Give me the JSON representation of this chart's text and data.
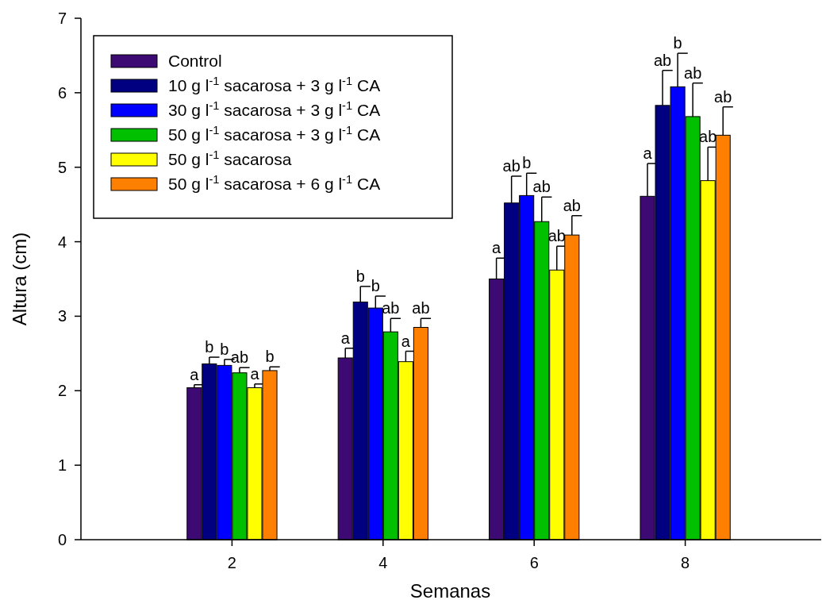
{
  "chart_data": {
    "type": "bar",
    "xlabel": "Semanas",
    "ylabel": "Altura (cm)",
    "x": [
      2,
      4,
      6,
      8
    ],
    "xlim": [
      0,
      9.8
    ],
    "xticks": [
      2,
      4,
      6,
      8
    ],
    "ylim": [
      0,
      7
    ],
    "yticks": [
      0,
      1,
      2,
      3,
      4,
      5,
      6,
      7
    ],
    "grid": false,
    "legend": "top left",
    "series": [
      {
        "name": "Control",
        "color": "#3d0a73",
        "values": [
          2.04,
          2.44,
          3.5,
          4.61
        ],
        "errors": [
          [
            2.04,
            2.08
          ],
          [
            2.44,
            2.57
          ],
          [
            3.5,
            3.78
          ],
          [
            4.61,
            5.05
          ]
        ]
      },
      {
        "name": "10 g l$^{-1}$ sacarosa + 3 g l$^{-1}$ CA",
        "color": "#000080",
        "values": [
          2.36,
          3.19,
          4.52,
          5.83
        ],
        "errors": [
          [
            2.36,
            2.45
          ],
          [
            3.19,
            3.4
          ],
          [
            4.52,
            4.88
          ],
          [
            5.83,
            6.3
          ]
        ]
      },
      {
        "name": "30 g l$^{-1}$ sacarosa + 3 g l$^{-1}$ CA",
        "color": "#0000ff",
        "values": [
          2.34,
          3.11,
          4.62,
          6.08
        ],
        "errors": [
          [
            2.34,
            2.42
          ],
          [
            3.11,
            3.27
          ],
          [
            4.62,
            4.92
          ],
          [
            6.08,
            6.53
          ]
        ]
      },
      {
        "name": "50 g l$^{-1}$ sacarosa + 3 g l$^{-1}$ CA",
        "color": "#00c000",
        "values": [
          2.24,
          2.79,
          4.27,
          5.68
        ],
        "errors": [
          [
            2.24,
            2.31
          ],
          [
            2.79,
            2.97
          ],
          [
            4.27,
            4.6
          ],
          [
            5.68,
            6.13
          ]
        ]
      },
      {
        "name": "50 g l$^{-1}$ sacarosa",
        "color": "#ffff00",
        "values": [
          2.04,
          2.39,
          3.62,
          4.82
        ],
        "errors": [
          [
            2.04,
            2.09
          ],
          [
            2.39,
            2.53
          ],
          [
            3.62,
            3.94
          ],
          [
            4.82,
            5.27
          ]
        ]
      },
      {
        "name": "50 g l$^{-1}$ sacarosa + 6 g l$^{-1}$ CA",
        "color": "#ff8000",
        "values": [
          2.27,
          2.85,
          4.09,
          5.43
        ],
        "errors": [
          [
            2.27,
            2.32
          ],
          [
            2.85,
            2.97
          ],
          [
            4.09,
            4.35
          ],
          [
            5.43,
            5.81
          ]
        ]
      }
    ],
    "annotations": [
      {
        "text": "a",
        "x": 1.5,
        "y": 2.08
      },
      {
        "text": "b",
        "x": 1.7,
        "y": 2.45
      },
      {
        "text": "b",
        "x": 1.9,
        "y": 2.42
      },
      {
        "text": "ab",
        "x": 2.1,
        "y": 2.31
      },
      {
        "text": "a",
        "x": 2.3,
        "y": 2.09
      },
      {
        "text": "b",
        "x": 2.5,
        "y": 2.32
      },
      {
        "text": "a",
        "x": 3.5,
        "y": 2.57
      },
      {
        "text": "b",
        "x": 3.7,
        "y": 3.4
      },
      {
        "text": "b",
        "x": 3.9,
        "y": 3.27
      },
      {
        "text": "ab",
        "x": 4.1,
        "y": 2.97
      },
      {
        "text": "a",
        "x": 4.3,
        "y": 2.53
      },
      {
        "text": "ab",
        "x": 4.5,
        "y": 2.97
      },
      {
        "text": "a",
        "x": 5.5,
        "y": 3.78
      },
      {
        "text": "ab",
        "x": 5.7,
        "y": 4.88
      },
      {
        "text": "b",
        "x": 5.9,
        "y": 4.92
      },
      {
        "text": "ab",
        "x": 6.1,
        "y": 4.6
      },
      {
        "text": "ab",
        "x": 6.3,
        "y": 3.94
      },
      {
        "text": "ab",
        "x": 6.5,
        "y": 4.35
      },
      {
        "text": "a",
        "x": 7.5,
        "y": 5.05
      },
      {
        "text": "ab",
        "x": 7.7,
        "y": 6.3
      },
      {
        "text": "b",
        "x": 7.9,
        "y": 6.53
      },
      {
        "text": "ab",
        "x": 8.1,
        "y": 6.13
      },
      {
        "text": "ab",
        "x": 8.3,
        "y": 5.27
      },
      {
        "text": "ab",
        "x": 8.5,
        "y": 5.81
      }
    ]
  }
}
